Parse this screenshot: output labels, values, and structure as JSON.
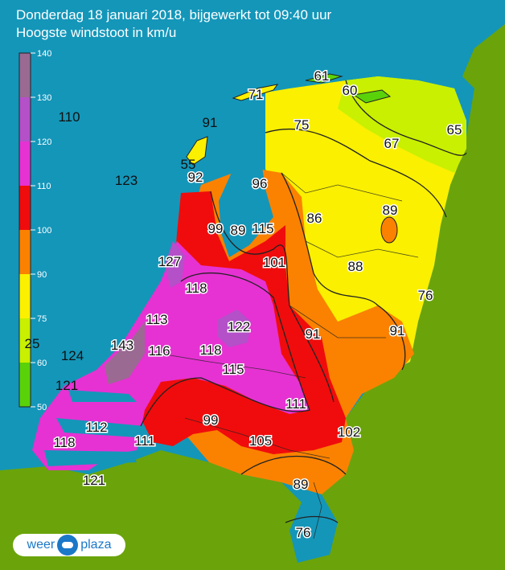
{
  "header": {
    "title": "Donderdag 18 januari 2018, bijgewerkt tot 09:40 uur",
    "subtitle": "Hoogste windstoot in km/u"
  },
  "legend": {
    "ticks": [
      "140",
      "130",
      "120",
      "110",
      "100",
      "90",
      "75",
      "60",
      "50"
    ],
    "bands": [
      {
        "from": 130,
        "to": 140,
        "color": "#9a6a92"
      },
      {
        "from": 120,
        "to": 130,
        "color": "#b450c8"
      },
      {
        "from": 110,
        "to": 120,
        "color": "#e632d2"
      },
      {
        "from": 100,
        "to": 110,
        "color": "#f00c0c"
      },
      {
        "from": 90,
        "to": 100,
        "color": "#fa8200"
      },
      {
        "from": 75,
        "to": 90,
        "color": "#faf000"
      },
      {
        "from": 60,
        "to": 75,
        "color": "#c8f000"
      },
      {
        "from": 50,
        "to": 60,
        "color": "#5ad20a"
      }
    ]
  },
  "colors": {
    "sea": "#1496b9",
    "land_outside": "#6aa40a",
    "border": "#222222"
  },
  "observations": [
    {
      "id": "obs-terschelling",
      "value": "71",
      "zone": "yellow"
    },
    {
      "id": "obs-schiermonnikoog",
      "value": "61",
      "zone": "green"
    },
    {
      "id": "obs-lauwersoog",
      "value": "60",
      "zone": "green"
    },
    {
      "id": "obs-sea-north",
      "value": "110",
      "zone": "sea"
    },
    {
      "id": "obs-vlieland",
      "value": "91",
      "zone": "sea"
    },
    {
      "id": "obs-leeuwarden",
      "value": "75",
      "zone": "yellow"
    },
    {
      "id": "obs-groningen",
      "value": "65",
      "zone": "lime"
    },
    {
      "id": "obs-drenthe",
      "value": "67",
      "zone": "yellow"
    },
    {
      "id": "obs-texel",
      "value": "55",
      "zone": "sea"
    },
    {
      "id": "obs-den-helder",
      "value": "92",
      "zone": "orange"
    },
    {
      "id": "obs-sea-west",
      "value": "123",
      "zone": "sea"
    },
    {
      "id": "obs-stavoren",
      "value": "96",
      "zone": "orange"
    },
    {
      "id": "obs-hoorn",
      "value": "89",
      "zone": "yellow"
    },
    {
      "id": "obs-urk",
      "value": "86",
      "zone": "yellow"
    },
    {
      "id": "obs-berkhout",
      "value": "99",
      "zone": "red"
    },
    {
      "id": "obs-markermeer",
      "value": "89",
      "zone": "red"
    },
    {
      "id": "obs-lelystad",
      "value": "115",
      "zone": "red"
    },
    {
      "id": "obs-ijmuiden",
      "value": "127",
      "zone": "purple"
    },
    {
      "id": "obs-flevoland",
      "value": "101",
      "zone": "red"
    },
    {
      "id": "obs-heino",
      "value": "88",
      "zone": "yellow"
    },
    {
      "id": "obs-schiphol",
      "value": "118",
      "zone": "magenta"
    },
    {
      "id": "obs-twente",
      "value": "76",
      "zone": "yellow"
    },
    {
      "id": "obs-valkenburg",
      "value": "113",
      "zone": "magenta"
    },
    {
      "id": "obs-de-bilt",
      "value": "122",
      "zone": "purple"
    },
    {
      "id": "obs-deelen",
      "value": "91",
      "zone": "orange"
    },
    {
      "id": "obs-hupsel",
      "value": "91",
      "zone": "orange"
    },
    {
      "id": "obs-hoek-van-holland",
      "value": "143",
      "zone": "purple"
    },
    {
      "id": "obs-rotterdam",
      "value": "116",
      "zone": "magenta"
    },
    {
      "id": "obs-cabauw",
      "value": "118",
      "zone": "magenta"
    },
    {
      "id": "obs-sea-edge",
      "value": "25",
      "zone": "sea"
    },
    {
      "id": "obs-sea-south",
      "value": "124",
      "zone": "sea"
    },
    {
      "id": "obs-herwijnen",
      "value": "115",
      "zone": "magenta"
    },
    {
      "id": "obs-goeree",
      "value": "121",
      "zone": "sea"
    },
    {
      "id": "obs-arnhem",
      "value": "111",
      "zone": "magenta"
    },
    {
      "id": "obs-zeeland",
      "value": "112",
      "zone": "magenta"
    },
    {
      "id": "obs-gilze-rijen",
      "value": "99",
      "zone": "red"
    },
    {
      "id": "obs-woensdrecht",
      "value": "111",
      "zone": "red"
    },
    {
      "id": "obs-vlissingen",
      "value": "118",
      "zone": "magenta"
    },
    {
      "id": "obs-eindhoven",
      "value": "105",
      "zone": "red"
    },
    {
      "id": "obs-volkel",
      "value": "102",
      "zone": "red"
    },
    {
      "id": "obs-westdorpe",
      "value": "121",
      "zone": "magenta"
    },
    {
      "id": "obs-ell",
      "value": "89",
      "zone": "yellow"
    },
    {
      "id": "obs-maastricht",
      "value": "76",
      "zone": "yellow"
    }
  ],
  "logo": {
    "left": "weer",
    "right": "plaza"
  }
}
